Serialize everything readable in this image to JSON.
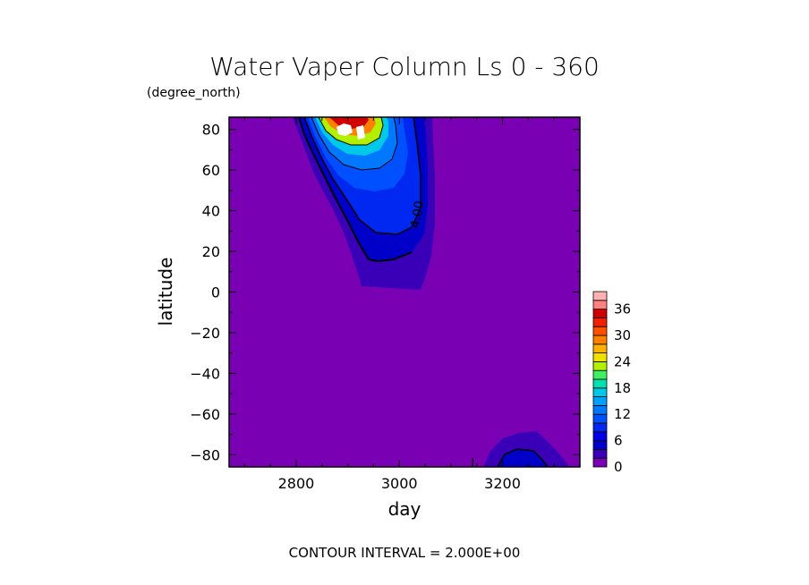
{
  "chart_data": {
    "type": "heatmap",
    "title": "Water Vaper Column Ls 0 - 360",
    "ylabel_units": "(degree_north)",
    "xlabel": "day",
    "ylabel": "latitude",
    "xlim": [
      2670,
      3350
    ],
    "ylim": [
      -86,
      86
    ],
    "x_ticks": [
      2800,
      3000,
      3200
    ],
    "y_ticks": [
      80,
      60,
      40,
      20,
      0,
      -20,
      -40,
      -60,
      -80
    ],
    "y_tick_labels": [
      "80",
      "60",
      "40",
      "20",
      "0",
      "−20",
      "−40",
      "−60",
      "−80"
    ],
    "contour_label": "4.00",
    "contour_interval_text": "CONTOUR INTERVAL = 2.000E+00",
    "colorbar": {
      "levels": [
        0,
        2,
        4,
        6,
        8,
        10,
        12,
        14,
        16,
        18,
        20,
        22,
        24,
        26,
        28,
        30,
        32,
        34,
        36,
        38
      ],
      "labeled_ticks": [
        "36",
        "30",
        "24",
        "18",
        "12",
        "6",
        "0"
      ],
      "colors": [
        "#7a00b4",
        "#3a00b8",
        "#0000c8",
        "#0000e6",
        "#0028f0",
        "#0050ff",
        "#0078ff",
        "#00a0ff",
        "#00c8e8",
        "#00e0b0",
        "#40f060",
        "#b0f000",
        "#f0e000",
        "#ffb000",
        "#ff8000",
        "#ff5000",
        "#f02000",
        "#d00000",
        "#ff8080",
        "#ffb0b0"
      ]
    }
  }
}
